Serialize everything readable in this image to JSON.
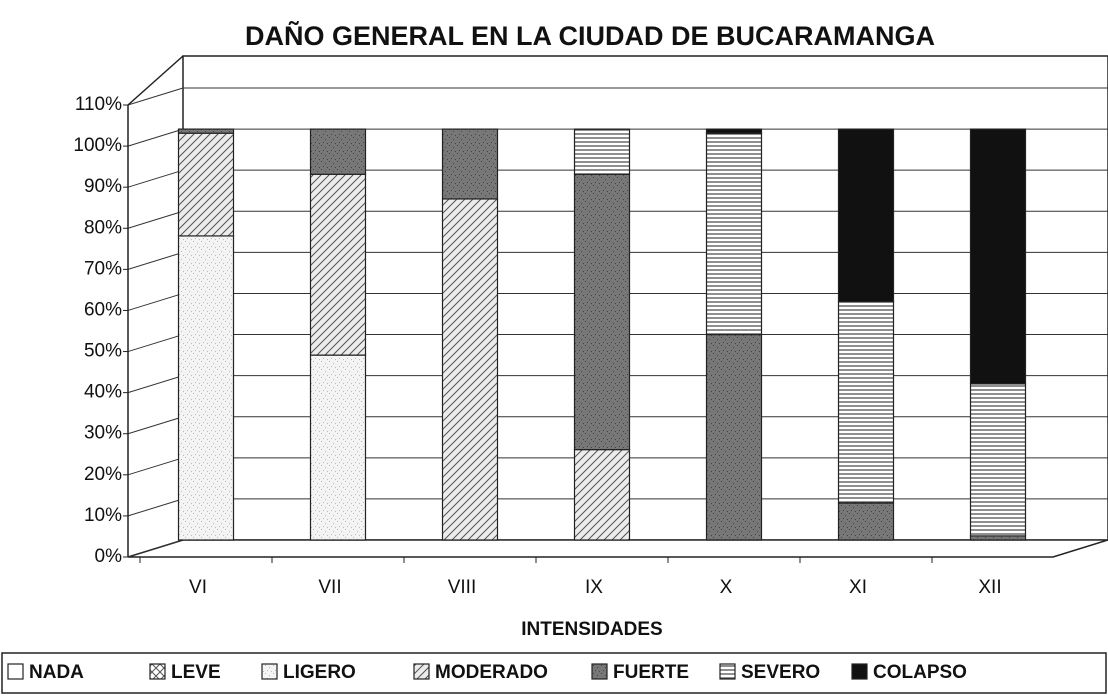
{
  "chart_data": {
    "type": "bar",
    "stacked": true,
    "title": "DAÑO GENERAL EN LA CIUDAD DE BUCARAMANGA",
    "x_label": "INTENSIDADES",
    "categories": [
      "VI",
      "VII",
      "VIII",
      "IX",
      "X",
      "XI",
      "XII"
    ],
    "series": [
      {
        "name": "NADA",
        "color": "#ffffff",
        "values": [
          0,
          0,
          0,
          0,
          0,
          0,
          0
        ]
      },
      {
        "name": "LEVE",
        "color": "#ffffff",
        "values": [
          0,
          0,
          0,
          0,
          0,
          0,
          0
        ]
      },
      {
        "name": "LIGERO",
        "color": "#f4f4f4",
        "values": [
          74,
          45,
          0,
          0,
          0,
          0,
          0
        ]
      },
      {
        "name": "MODERADO",
        "color": "#ececec",
        "values": [
          25,
          44,
          83,
          22,
          0,
          0,
          0
        ]
      },
      {
        "name": "FUERTE",
        "color": "#777777",
        "values": [
          1,
          11,
          17,
          67,
          50,
          9,
          1
        ]
      },
      {
        "name": "SEVERO",
        "color": "#ffffff",
        "values": [
          0,
          0,
          0,
          11,
          49,
          49,
          37
        ]
      },
      {
        "name": "COLAPSO",
        "color": "#111111",
        "values": [
          0,
          0,
          0,
          0,
          1,
          42,
          62
        ]
      }
    ],
    "ylim": [
      0,
      110
    ],
    "yticks": [
      {
        "value": 0,
        "label": "0%"
      },
      {
        "value": 10,
        "label": "10%"
      },
      {
        "value": 20,
        "label": "20%"
      },
      {
        "value": 30,
        "label": "30%"
      },
      {
        "value": 40,
        "label": "40%"
      },
      {
        "value": 50,
        "label": "50%"
      },
      {
        "value": 60,
        "label": "60%"
      },
      {
        "value": 70,
        "label": "70%"
      },
      {
        "value": 80,
        "label": "80%"
      },
      {
        "value": 90,
        "label": "90%"
      },
      {
        "value": 100,
        "label": "100%"
      },
      {
        "value": 110,
        "label": "110%"
      }
    ],
    "grid": true,
    "legend": "bottom"
  }
}
